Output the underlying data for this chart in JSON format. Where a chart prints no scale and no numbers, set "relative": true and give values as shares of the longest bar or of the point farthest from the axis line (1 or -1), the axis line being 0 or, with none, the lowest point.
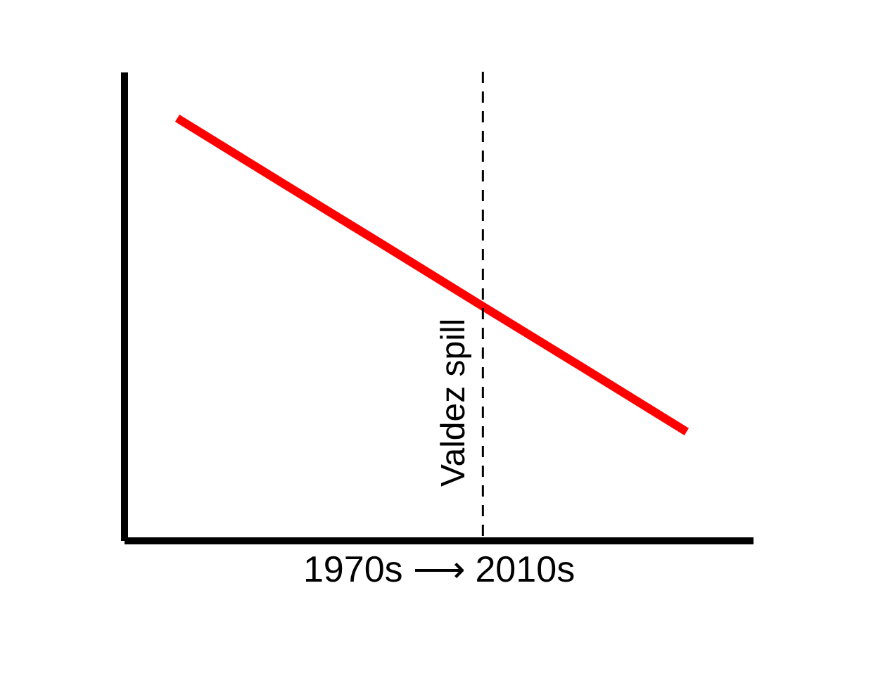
{
  "chart_data": {
    "type": "line",
    "relative": true,
    "categories": [
      null,
      null,
      null,
      null,
      null,
      null
    ],
    "series": [
      {
        "color": "#ff0000",
        "values": [
          1,
          0.851,
          0.703,
          0.554,
          0.406,
          0.257
        ]
      }
    ],
    "xlabel": "1970s ⟶ 2010s",
    "annotations": [
      "Valdez spill"
    ],
    "marker": "none",
    "line_style": "solid"
  }
}
